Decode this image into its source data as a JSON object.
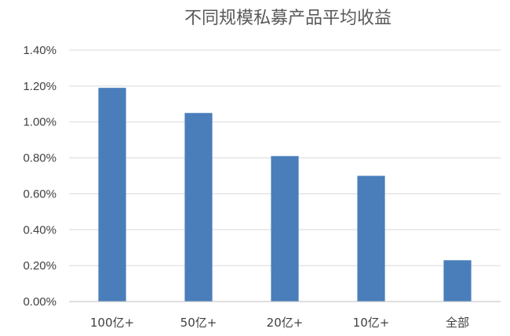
{
  "chart_data": {
    "type": "bar",
    "title": "不同规模私募产品平均收益",
    "xlabel": "",
    "ylabel": "",
    "categories": [
      "100亿+",
      "50亿+",
      "20亿+",
      "10亿+",
      "全部"
    ],
    "values": [
      1.19,
      1.05,
      0.81,
      0.7,
      0.23
    ],
    "ylim": [
      0,
      1.4
    ],
    "yticks": [
      0,
      0.2,
      0.4,
      0.6,
      0.8,
      1.0,
      1.2,
      1.4
    ],
    "ytick_labels": [
      "0.00%",
      "0.20%",
      "0.40%",
      "0.60%",
      "0.80%",
      "1.00%",
      "1.20%",
      "1.40%"
    ],
    "value_unit": "%",
    "grid": true,
    "legend": "none",
    "bar_color": "#4a7ebb"
  }
}
